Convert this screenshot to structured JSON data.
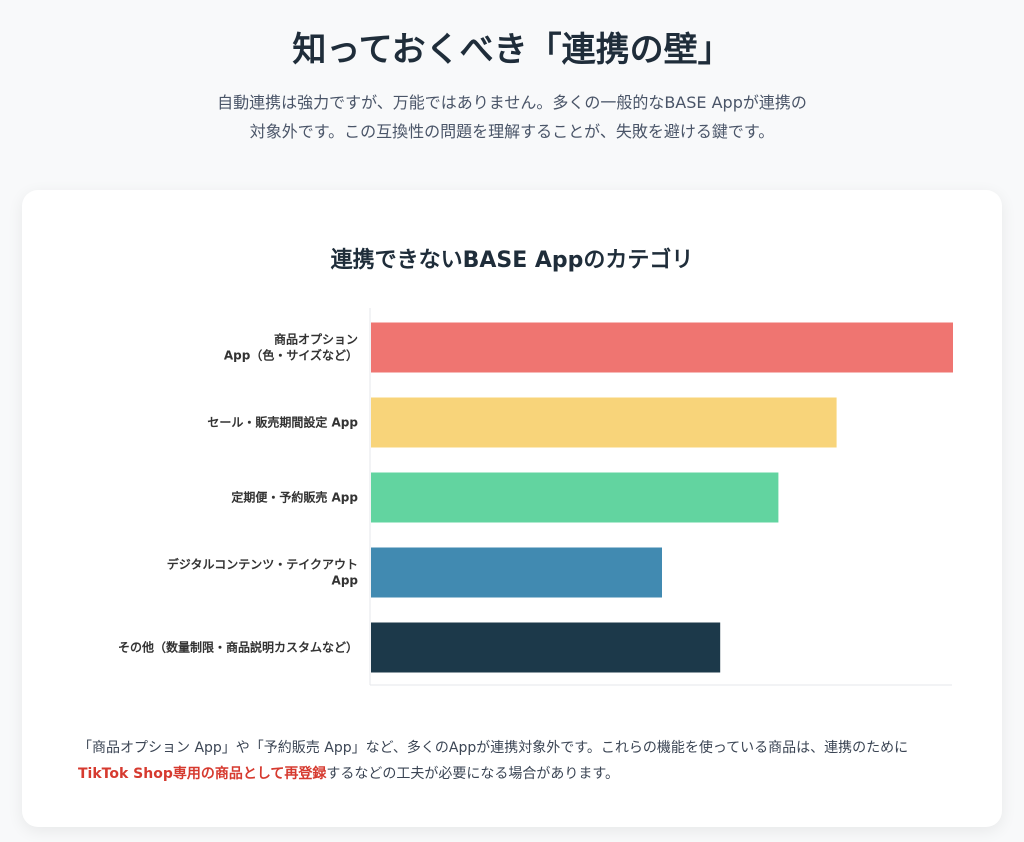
{
  "header": {
    "title": "知っておくべき「連携の壁」",
    "intro_line1": "自動連携は強力ですが、万能ではありません。多くの一般的なBASE Appが連携の",
    "intro_line2": "対象外です。この互換性の問題を理解することが、失敗を避ける鍵です。"
  },
  "chart_data": {
    "type": "bar",
    "orientation": "horizontal",
    "title": "連携できないBASE Appのカテゴリ",
    "categories": [
      [
        "商品オプション",
        "App（色・サイズなど）"
      ],
      [
        "セール・販売期間設定 App"
      ],
      [
        "定期便・予約販売 App"
      ],
      [
        "デジタルコンテンツ・テイクアウト",
        "App"
      ],
      [
        "その他（数量制限・商品説明カスタムなど）"
      ]
    ],
    "values": [
      100,
      80,
      70,
      50,
      60
    ],
    "colors": [
      "#ef7571",
      "#f8d47a",
      "#62d4a0",
      "#418ab1",
      "#1c394a"
    ],
    "xlim": [
      0,
      100
    ],
    "xlabel": "",
    "ylabel": "",
    "grid": false,
    "legend": "none"
  },
  "footnote": {
    "part1": "「商品オプション App」や「予約販売 App」など、多くのAppが連携対象外です。これらの機能を使っている商品は、連携のために",
    "emphasis": "TikTok Shop専用の商品として再登録",
    "part2": "するなどの工夫が必要になる場合があります。"
  }
}
